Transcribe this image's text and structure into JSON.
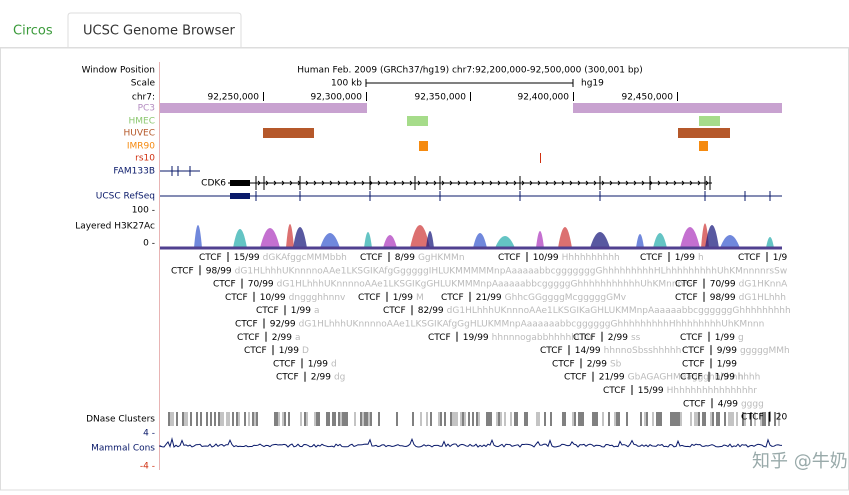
{
  "tabs": [
    "Circos",
    "UCSC Genome Browser"
  ],
  "header": {
    "window_position": "Window Position",
    "assembly": "Human Feb. 2009 (GRCh37/hg19)   chr7:92,200,000-92,500,000 (300,001 bp)",
    "scale": "Scale",
    "scale_bar": "100 kb",
    "db": "hg19",
    "chrom": "chr7:",
    "positions": [
      "92,250,000",
      "92,300,000",
      "92,350,000",
      "92,400,000",
      "92,450,000"
    ]
  },
  "tracks": {
    "pc3": "PC3",
    "hmec": "HMEC",
    "huvec": "HUVEC",
    "imr90": "IMR90",
    "rs10": "rs10",
    "fam133b": "FAM133B",
    "cdk6": "CDK6",
    "refseq": "UCSC RefSeq",
    "h3_max": "100 -",
    "h3": "Layered H3K27Ac",
    "h3_min": "0 -",
    "dnase": "DNase Clusters",
    "cons_max": "4 -",
    "cons": "Mammal Cons",
    "cons_min": "-4 -"
  },
  "ctcf": [
    [
      {
        "name": "CTCF",
        "score": "15/99",
        "motif": "dGKAfggcMMMbbh"
      },
      {
        "name": "CTCF",
        "score": "8/99",
        "motif": "GgHKMMn"
      },
      {
        "name": "CTCF",
        "score": "10/99",
        "motif": "Hhhhhhhhhh"
      },
      {
        "name": "CTCF",
        "score": "1/99",
        "motif": "h"
      },
      {
        "name": "CTCF",
        "score": "1/9",
        "motif": ""
      }
    ],
    [
      {
        "name": "CTCF",
        "score": "98/99",
        "motif": "dG1HLhhhUKnnnnoAAe1LKSGIKAfgGgggggIHLUKMMMMMnpAaaaaabbcgggggggGhhhhhhhhhHLhhhhhhhhhUhKMnnnnrsSw"
      }
    ],
    [
      {
        "name": "CTCF",
        "score": "70/99",
        "motif": "dG1HLhhhUKnnnnoAAe1LKSGIKgGHLUKMMMnpAaaaaabbcgggggGhhhhhhhhhhhUhKMnnnrS"
      },
      {
        "name": "CTCF",
        "score": "70/99",
        "motif": "dG1HKnnA"
      }
    ],
    [
      {
        "name": "CTCF",
        "score": "10/99",
        "motif": "dnggghhnnv"
      },
      {
        "name": "CTCF",
        "score": "1/99",
        "motif": "M"
      },
      {
        "name": "CTCF",
        "score": "21/99",
        "motif": "GhhcGGggggMcgggggGMv"
      },
      {
        "name": "CTCF",
        "score": "98/99",
        "motif": "dG1HLhhh"
      }
    ],
    [
      {
        "name": "CTCF",
        "score": "1/99",
        "motif": "a"
      },
      {
        "name": "CTCF",
        "score": "82/99",
        "motif": "dG1HLhhhUKnnnoAAe1LKSGIKaGHLUKMMnpAaaaaabbcggggggGhhhhhhhhh"
      }
    ],
    [
      {
        "name": "CTCF",
        "score": "92/99",
        "motif": "dG1HLhhhUKnnnnoAAe1LKSGIKAfgGgHLUKMMnpAaaaaaabbcggggggGhhhhhhhhhHhhhhhhhhUhKMnnn"
      }
    ],
    [
      {
        "name": "CTCF",
        "score": "2/99",
        "motif": "a"
      },
      {
        "name": "CTCF",
        "score": "19/99",
        "motif": "hhnnnogabbhhhhhUhr"
      },
      {
        "name": "CTCF",
        "score": "2/99",
        "motif": "ss"
      },
      {
        "name": "CTCF",
        "score": "1/99",
        "motif": "g"
      }
    ],
    [
      {
        "name": "CTCF",
        "score": "1/99",
        "motif": "D"
      },
      {
        "name": "CTCF",
        "score": "14/99",
        "motif": "hhnnoSbsshhhhh"
      },
      {
        "name": "CTCF",
        "score": "9/99",
        "motif": "gggggMMh"
      }
    ],
    [
      {
        "name": "CTCF",
        "score": "1/99",
        "motif": "d"
      },
      {
        "name": "CTCF",
        "score": "2/99",
        "motif": "Sb"
      },
      {
        "name": "CTCF",
        "score": "1/99",
        "motif": ""
      }
    ],
    [
      {
        "name": "CTCF",
        "score": "2/99",
        "motif": "dg"
      },
      {
        "name": "CTCF",
        "score": "21/99",
        "motif": "GbAGAGHMaaggghhhhhhhhh"
      },
      {
        "name": "CTCF",
        "score": "1/99",
        "motif": "h"
      }
    ],
    [
      {
        "name": "CTCF",
        "score": "15/99",
        "motif": "Hhhhhhhhhhhhhhhr"
      }
    ],
    [
      {
        "name": "CTCF",
        "score": "4/99",
        "motif": "gggg"
      }
    ],
    [
      {
        "name": "CTCF",
        "score": "20",
        "motif": ""
      }
    ]
  ],
  "watermark": "知乎 @牛奶"
}
